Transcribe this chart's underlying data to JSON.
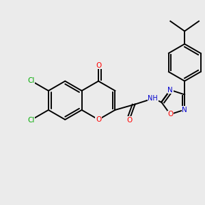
{
  "background_color": "#ebebeb",
  "fig_width": 3.0,
  "fig_height": 3.0,
  "dpi": 100,
  "atom_colors": {
    "O": "#ff0000",
    "N": "#0000cd",
    "Cl": "#00aa00",
    "C": "#000000",
    "H": "#5f9ea0"
  },
  "bond_lw": 1.4,
  "font_size": 7.5
}
